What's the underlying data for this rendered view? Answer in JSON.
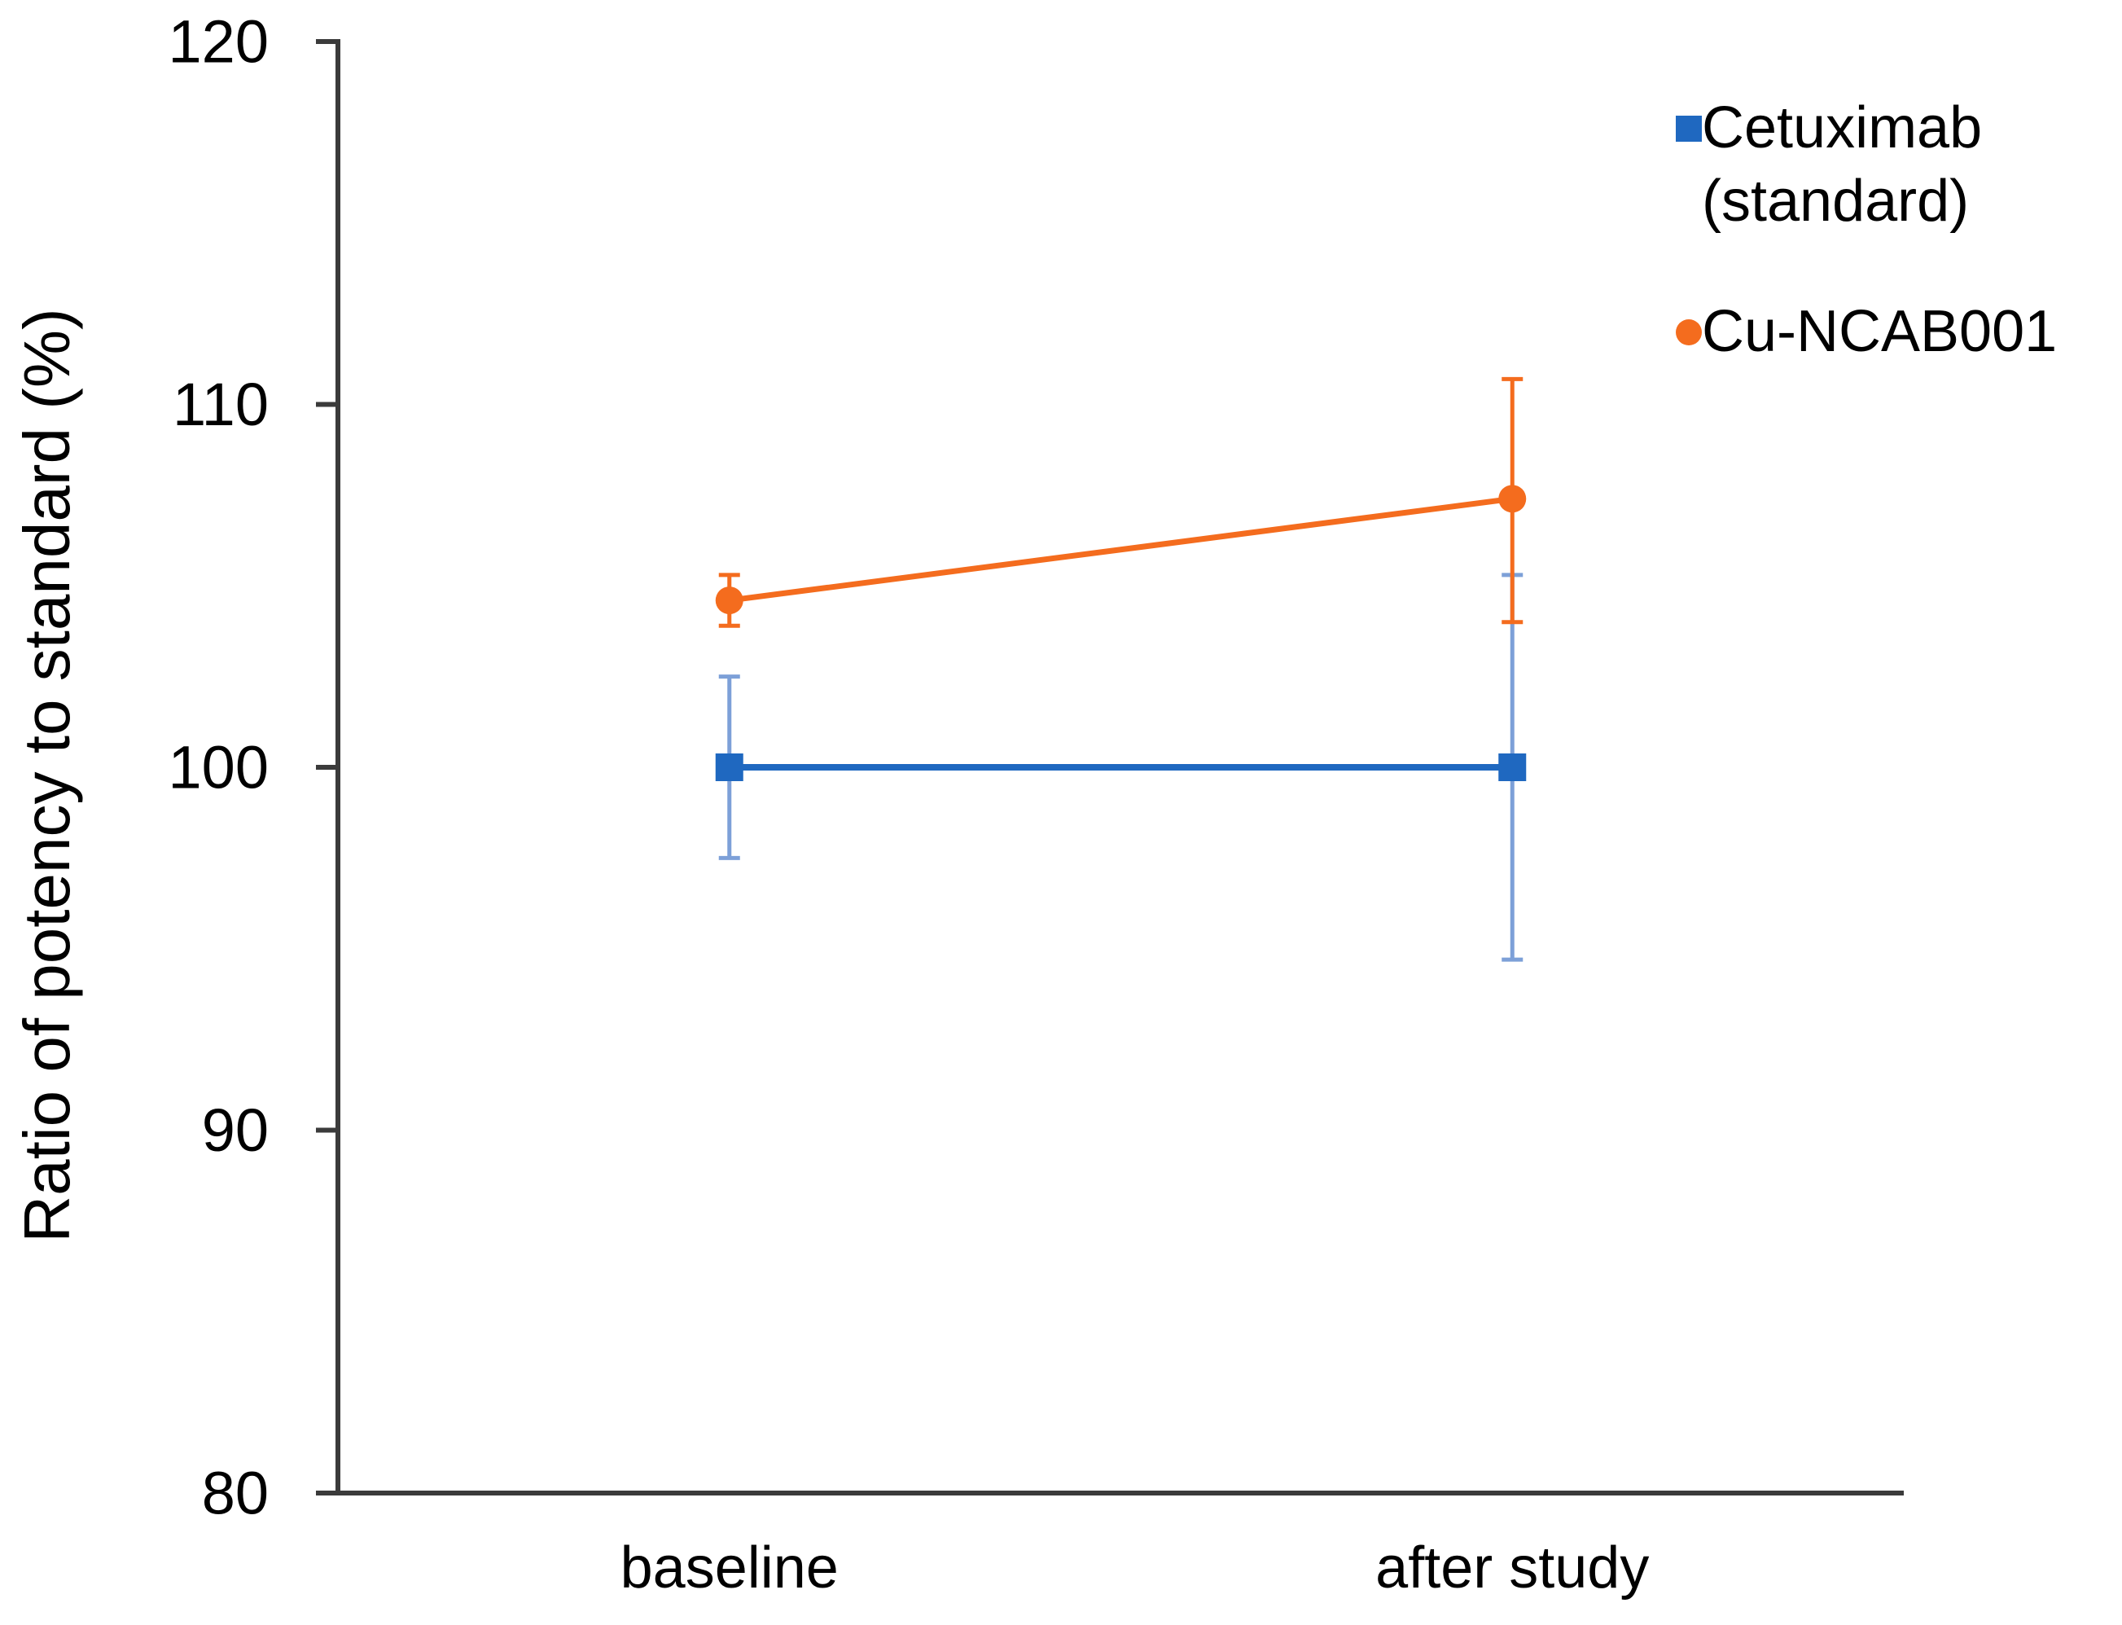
{
  "figure": {
    "background": "#ffffff"
  },
  "chart_data": {
    "type": "line",
    "title": "",
    "xlabel": "",
    "ylabel": "Ratio of potency to standard (%)",
    "categories": [
      "baseline",
      "after study"
    ],
    "ylim": [
      80,
      120
    ],
    "yticks": [
      80,
      90,
      100,
      110,
      120
    ],
    "grid": false,
    "legend_position": "top-right",
    "axis_color": "#3b3b3b",
    "text_color": "#000000",
    "series": [
      {
        "name": "Cetuximab (standard)",
        "marker": "square",
        "color": "#1f68c0",
        "error_bar_color": "#7da0d8",
        "values": [
          100,
          100
        ],
        "error_plus": [
          2.5,
          5.3
        ],
        "error_minus": [
          2.5,
          5.3
        ]
      },
      {
        "name": "Cu-NCAB001",
        "marker": "circle",
        "color": "#f46c1e",
        "error_bar_color": "#f46c1e",
        "values": [
          104.6,
          107.4
        ],
        "error_plus": [
          0.7,
          3.3
        ],
        "error_minus": [
          0.7,
          3.4
        ]
      }
    ]
  }
}
